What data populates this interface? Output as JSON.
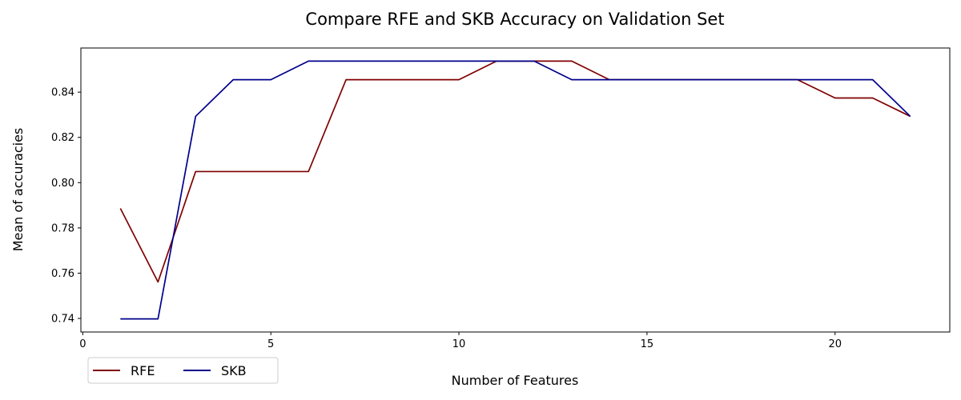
{
  "chart_data": {
    "type": "line",
    "title": "Compare RFE and SKB Accuracy on Validation Set",
    "xlabel": "Number of Features",
    "ylabel": "Mean of accuracies",
    "xlim": [
      -0.05,
      23.05
    ],
    "ylim": [
      0.734,
      0.8595
    ],
    "xticks": [
      0,
      5,
      10,
      15,
      20
    ],
    "yticks": [
      0.74,
      0.76,
      0.78,
      0.8,
      0.82,
      0.84
    ],
    "ytick_labels": [
      "0.74",
      "0.76",
      "0.78",
      "0.80",
      "0.82",
      "0.84"
    ],
    "x": [
      1,
      2,
      3,
      4,
      5,
      6,
      7,
      8,
      9,
      10,
      11,
      12,
      13,
      14,
      15,
      16,
      17,
      18,
      19,
      20,
      21,
      22
    ],
    "series": [
      {
        "name": "RFE",
        "color": "#800000",
        "values": [
          0.7886,
          0.7561,
          0.8049,
          0.8049,
          0.8049,
          0.8049,
          0.8455,
          0.8455,
          0.8455,
          0.8455,
          0.8537,
          0.8537,
          0.8537,
          0.8455,
          0.8455,
          0.8455,
          0.8455,
          0.8455,
          0.8455,
          0.8374,
          0.8374,
          0.8293
        ]
      },
      {
        "name": "SKB",
        "color": "#00008b",
        "values": [
          0.7398,
          0.7398,
          0.8293,
          0.8455,
          0.8455,
          0.8537,
          0.8537,
          0.8537,
          0.8537,
          0.8537,
          0.8537,
          0.8537,
          0.8455,
          0.8455,
          0.8455,
          0.8455,
          0.8455,
          0.8455,
          0.8455,
          0.8455,
          0.8455,
          0.8293
        ]
      }
    ],
    "grid": false,
    "legend": {
      "placement": "lower-left-outside",
      "columns": 2
    }
  }
}
